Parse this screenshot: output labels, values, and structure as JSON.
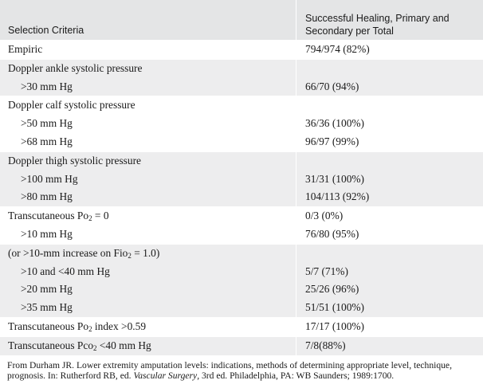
{
  "table": {
    "header": {
      "criteria": "Selection Criteria",
      "result_line1": "Successful Healing, Primary and",
      "result_line2": "Secondary per Total"
    },
    "rows": [
      {
        "criteria": "Empiric",
        "result": "794/974 (82%)",
        "indent": false,
        "shaded": false
      },
      {
        "criteria": "Doppler ankle systolic pressure",
        "result": "",
        "indent": false,
        "shaded": true
      },
      {
        "criteria": ">30 mm Hg",
        "result": "66/70 (94%)",
        "indent": true,
        "shaded": true
      },
      {
        "criteria": "Doppler calf systolic pressure",
        "result": "",
        "indent": false,
        "shaded": false
      },
      {
        "criteria": ">50 mm Hg",
        "result": "36/36 (100%)",
        "indent": true,
        "shaded": false
      },
      {
        "criteria": ">68 mm Hg",
        "result": "96/97 (99%)",
        "indent": true,
        "shaded": false
      },
      {
        "criteria": "Doppler thigh systolic pressure",
        "result": "",
        "indent": false,
        "shaded": true
      },
      {
        "criteria": ">100 mm Hg",
        "result": "31/31 (100%)",
        "indent": true,
        "shaded": true
      },
      {
        "criteria": ">80 mm Hg",
        "result": "104/113 (92%)",
        "indent": true,
        "shaded": true
      },
      {
        "criteria": "Transcutaneous Po2 = 0",
        "result": "0/3 (0%)",
        "indent": false,
        "shaded": false
      },
      {
        "criteria": ">10 mm Hg",
        "result": "76/80 (95%)",
        "indent": true,
        "shaded": false
      },
      {
        "criteria": "(or >10-mm increase on Fio2 = 1.0)",
        "result": "",
        "indent": false,
        "shaded": true
      },
      {
        "criteria": ">10 and <40 mm Hg",
        "result": "5/7 (71%)",
        "indent": true,
        "shaded": true
      },
      {
        "criteria": ">20 mm Hg",
        "result": "25/26 (96%)",
        "indent": true,
        "shaded": true
      },
      {
        "criteria": ">35 mm Hg",
        "result": "51/51 (100%)",
        "indent": true,
        "shaded": true
      },
      {
        "criteria": "Transcutaneous Po2 index >0.59",
        "result": "17/17 (100%)",
        "indent": false,
        "shaded": false
      },
      {
        "criteria": "Transcutaneous Pco2 <40 mm Hg",
        "result": "7/8(88%)",
        "indent": false,
        "shaded": true
      }
    ]
  },
  "footnote": {
    "before_title": "From Durham JR. Lower extremity amputation levels: indications, methods of determining appropriate level, technique, prognosis. In: Rutherford RB, ed. ",
    "book_title": "Vascular Surgery",
    "after_title": ", 3rd ed. Philadelphia, PA: WB Saunders; 1989:1700."
  },
  "colors": {
    "header_bg": "#e4e5e6",
    "shade_bg": "#ededee",
    "text": "#1a1a1a"
  }
}
